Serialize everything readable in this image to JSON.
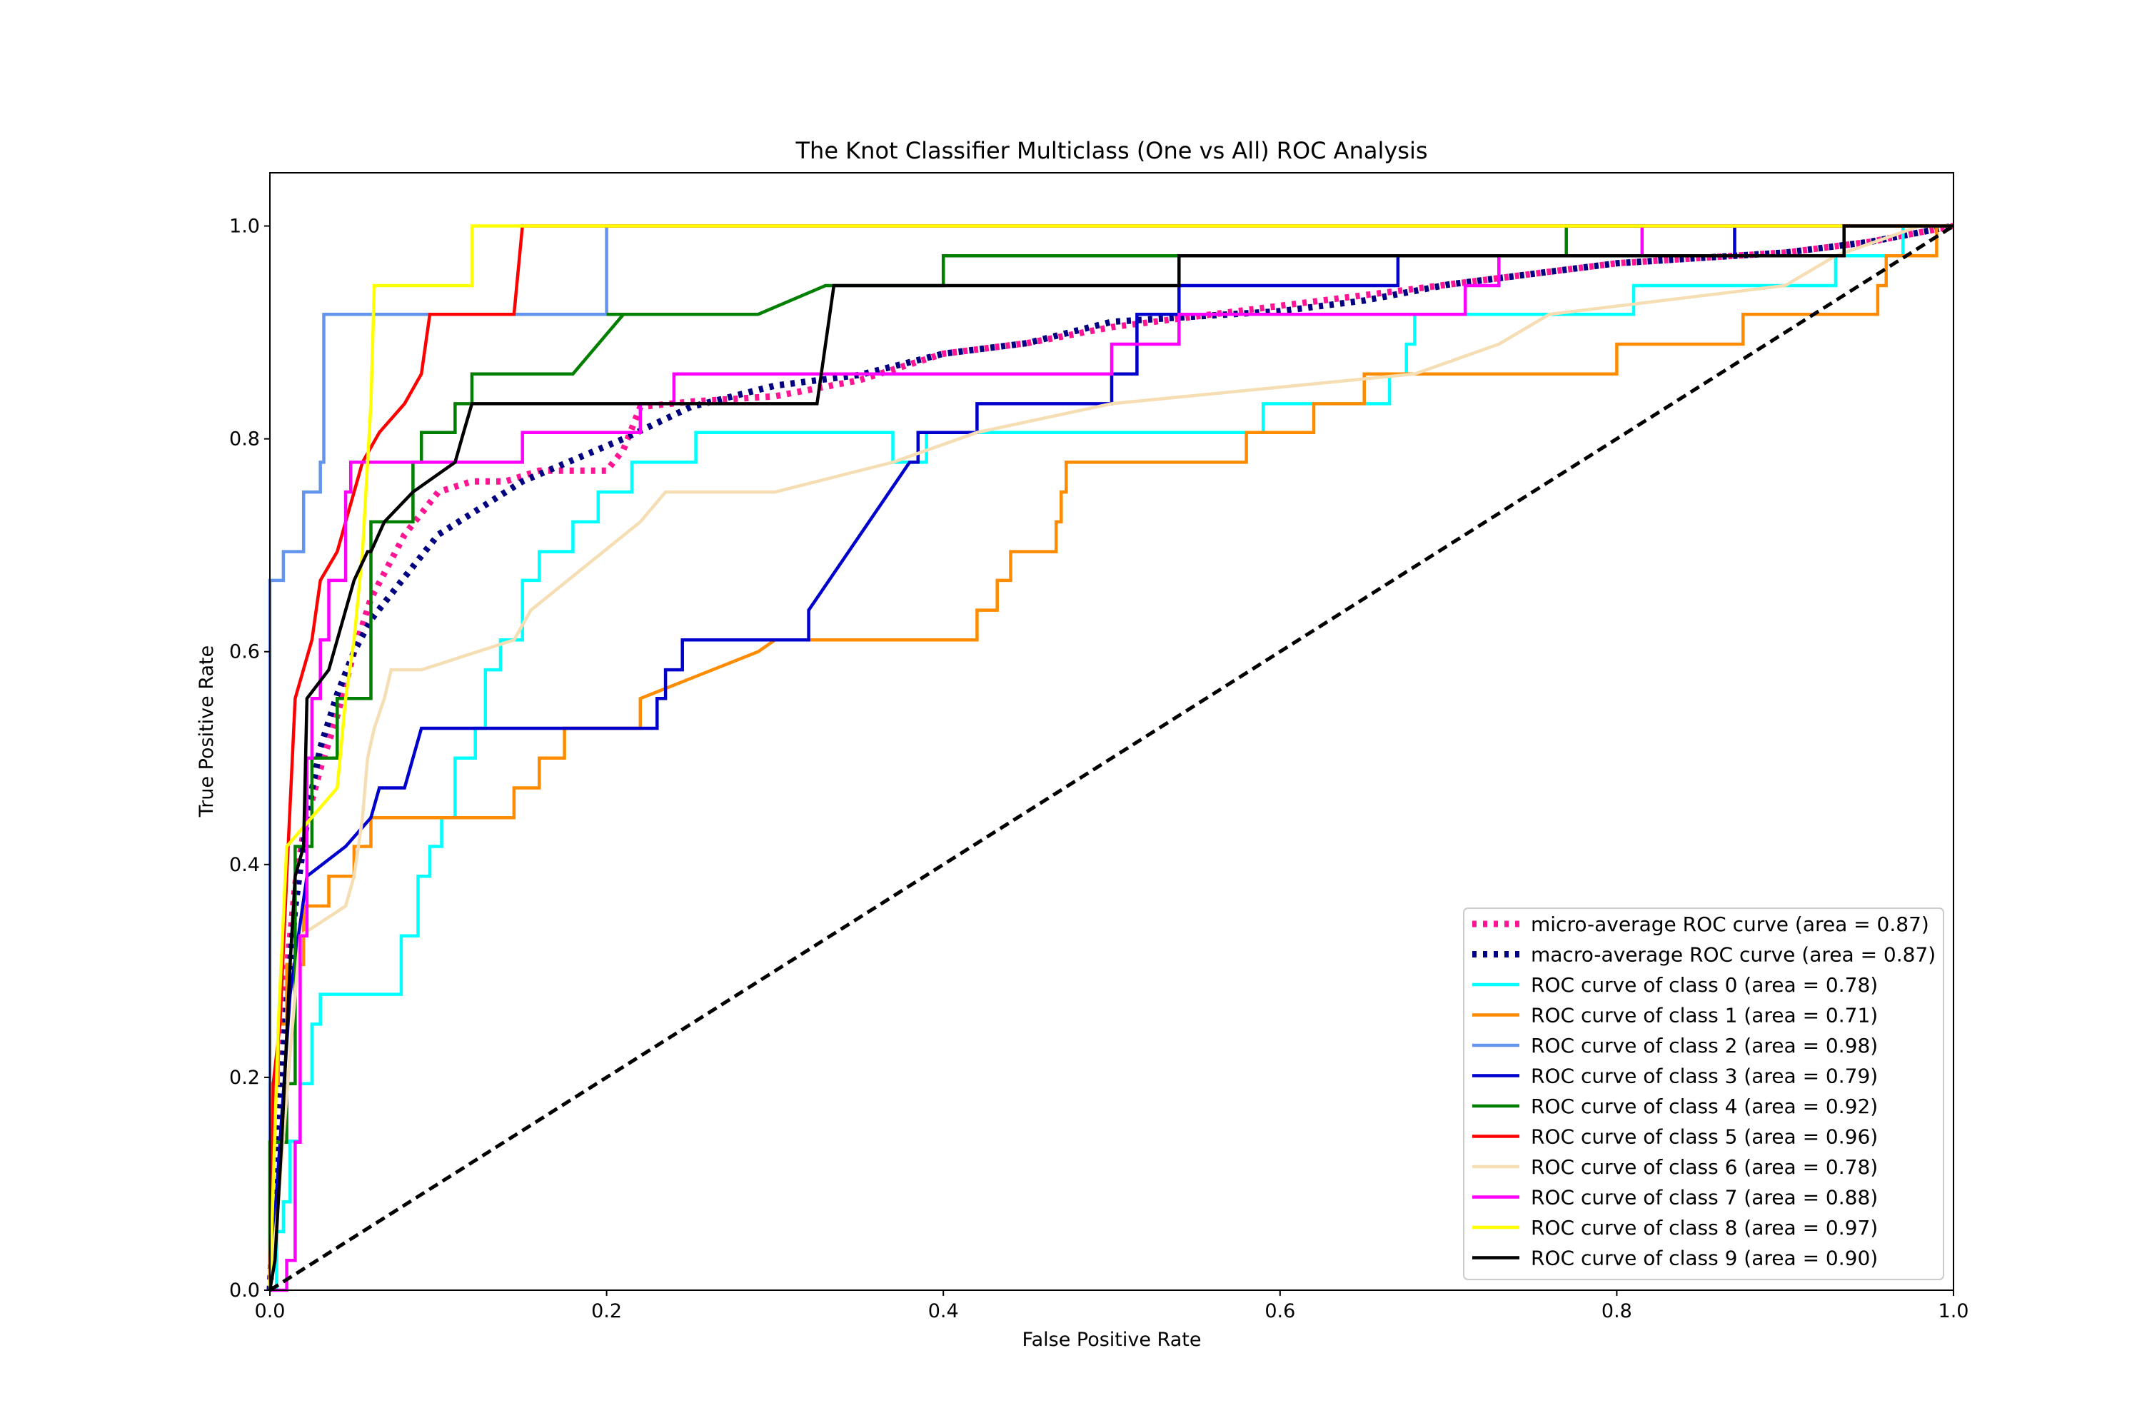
{
  "chart_data": {
    "type": "line",
    "title": "The Knot Classifier Multiclass (One vs All) ROC Analysis",
    "xlabel": "False Positive Rate",
    "ylabel": "True Positive Rate",
    "xlim": [
      0.0,
      1.0
    ],
    "ylim": [
      0.0,
      1.05
    ],
    "xticks": [
      "0.0",
      "0.2",
      "0.4",
      "0.6",
      "0.8",
      "1.0"
    ],
    "yticks": [
      "0.0",
      "0.2",
      "0.4",
      "0.6",
      "0.8",
      "1.0"
    ],
    "grid": false,
    "legend_location": "lower-right",
    "series": [
      {
        "name": "micro-average ROC curve (area = 0.87)",
        "color": "#ff1493",
        "style": "dotted",
        "x": [
          0,
          0.005,
          0.01,
          0.015,
          0.02,
          0.025,
          0.03,
          0.04,
          0.05,
          0.06,
          0.07,
          0.08,
          0.09,
          0.1,
          0.12,
          0.14,
          0.16,
          0.18,
          0.2,
          0.21,
          0.22,
          0.25,
          0.3,
          0.35,
          0.4,
          0.45,
          0.5,
          0.55,
          0.6,
          0.65,
          0.7,
          0.75,
          0.8,
          0.85,
          0.9,
          0.95,
          1.0
        ],
        "y": [
          0,
          0.17,
          0.3,
          0.38,
          0.43,
          0.46,
          0.49,
          0.54,
          0.6,
          0.65,
          0.68,
          0.71,
          0.73,
          0.75,
          0.76,
          0.76,
          0.77,
          0.77,
          0.77,
          0.79,
          0.83,
          0.835,
          0.84,
          0.855,
          0.88,
          0.89,
          0.905,
          0.915,
          0.925,
          0.935,
          0.945,
          0.955,
          0.965,
          0.97,
          0.975,
          0.985,
          1.0
        ]
      },
      {
        "name": "macro-average ROC curve (area = 0.87)",
        "color": "#000080",
        "style": "dotted",
        "x": [
          0,
          0.005,
          0.01,
          0.015,
          0.02,
          0.025,
          0.03,
          0.04,
          0.05,
          0.06,
          0.07,
          0.08,
          0.09,
          0.1,
          0.12,
          0.15,
          0.18,
          0.21,
          0.25,
          0.3,
          0.35,
          0.4,
          0.45,
          0.5,
          0.55,
          0.6,
          0.65,
          0.7,
          0.75,
          0.8,
          0.85,
          0.9,
          0.95,
          1.0
        ],
        "y": [
          0,
          0.15,
          0.27,
          0.36,
          0.42,
          0.47,
          0.51,
          0.56,
          0.6,
          0.63,
          0.65,
          0.67,
          0.69,
          0.71,
          0.73,
          0.76,
          0.78,
          0.8,
          0.83,
          0.85,
          0.86,
          0.88,
          0.89,
          0.91,
          0.915,
          0.92,
          0.93,
          0.945,
          0.955,
          0.965,
          0.97,
          0.975,
          0.985,
          1.0
        ]
      },
      {
        "name": "ROC curve of class 0 (area = 0.78)",
        "color": "#00ffff",
        "style": "solid",
        "x": [
          0,
          0.004,
          0.004,
          0.008,
          0.008,
          0.012,
          0.012,
          0.018,
          0.018,
          0.025,
          0.025,
          0.03,
          0.03,
          0.078,
          0.078,
          0.088,
          0.088,
          0.095,
          0.095,
          0.102,
          0.102,
          0.11,
          0.11,
          0.122,
          0.122,
          0.128,
          0.128,
          0.137,
          0.137,
          0.15,
          0.15,
          0.16,
          0.16,
          0.18,
          0.18,
          0.195,
          0.195,
          0.215,
          0.215,
          0.24,
          0.24,
          0.253,
          0.253,
          0.37,
          0.37,
          0.39,
          0.39,
          0.59,
          0.59,
          0.665,
          0.665,
          0.675,
          0.675,
          0.68,
          0.68,
          0.81,
          0.81,
          0.93,
          0.93,
          0.97,
          0.97,
          1.0
        ],
        "y": [
          0,
          0,
          0.055,
          0.055,
          0.083,
          0.083,
          0.14,
          0.14,
          0.194,
          0.194,
          0.25,
          0.25,
          0.278,
          0.278,
          0.333,
          0.333,
          0.389,
          0.389,
          0.417,
          0.417,
          0.444,
          0.444,
          0.5,
          0.5,
          0.528,
          0.528,
          0.583,
          0.583,
          0.611,
          0.611,
          0.667,
          0.667,
          0.694,
          0.694,
          0.722,
          0.722,
          0.75,
          0.75,
          0.778,
          0.778,
          0.778,
          0.778,
          0.806,
          0.806,
          0.778,
          0.778,
          0.806,
          0.806,
          0.833,
          0.833,
          0.861,
          0.861,
          0.889,
          0.889,
          0.917,
          0.917,
          0.944,
          0.944,
          0.972,
          0.972,
          1.0,
          1.0
        ]
      },
      {
        "name": "ROC curve of class 1 (area = 0.71)",
        "color": "#ff8c00",
        "style": "solid",
        "x": [
          0,
          0,
          0.005,
          0.005,
          0.01,
          0.01,
          0.02,
          0.02,
          0.035,
          0.035,
          0.05,
          0.05,
          0.06,
          0.06,
          0.145,
          0.145,
          0.16,
          0.16,
          0.175,
          0.175,
          0.22,
          0.22,
          0.29,
          0.3,
          0.42,
          0.42,
          0.432,
          0.432,
          0.44,
          0.44,
          0.467,
          0.467,
          0.47,
          0.47,
          0.473,
          0.473,
          0.58,
          0.58,
          0.62,
          0.62,
          0.65,
          0.65,
          0.8,
          0.8,
          0.875,
          0.875,
          0.955,
          0.955,
          0.96,
          0.96,
          0.99,
          0.99,
          1.0
        ],
        "y": [
          0,
          0.194,
          0.194,
          0.25,
          0.25,
          0.306,
          0.306,
          0.361,
          0.361,
          0.389,
          0.389,
          0.417,
          0.417,
          0.444,
          0.444,
          0.472,
          0.472,
          0.5,
          0.5,
          0.528,
          0.528,
          0.556,
          0.6,
          0.611,
          0.611,
          0.639,
          0.639,
          0.667,
          0.667,
          0.694,
          0.694,
          0.722,
          0.722,
          0.75,
          0.75,
          0.778,
          0.778,
          0.806,
          0.806,
          0.833,
          0.833,
          0.861,
          0.861,
          0.889,
          0.889,
          0.917,
          0.917,
          0.944,
          0.944,
          0.972,
          0.972,
          1.0,
          1.0
        ]
      },
      {
        "name": "ROC curve of class 2 (area = 0.98)",
        "color": "#6495ed",
        "style": "solid",
        "x": [
          0,
          0,
          0.008,
          0.008,
          0.02,
          0.02,
          0.03,
          0.03,
          0.032,
          0.032,
          0.2,
          0.2,
          1.0
        ],
        "y": [
          0,
          0.667,
          0.667,
          0.694,
          0.694,
          0.75,
          0.75,
          0.778,
          0.778,
          0.917,
          0.917,
          1.0,
          1.0
        ]
      },
      {
        "name": "ROC curve of class 3 (area = 0.79)",
        "color": "#0000cd",
        "style": "solid",
        "x": [
          0,
          0.012,
          0.012,
          0.022,
          0.022,
          0.045,
          0.045,
          0.06,
          0.06,
          0.065,
          0.065,
          0.08,
          0.08,
          0.085,
          0.085,
          0.09,
          0.09,
          0.215,
          0.23,
          0.23,
          0.235,
          0.235,
          0.245,
          0.245,
          0.32,
          0.32,
          0.38,
          0.385,
          0.385,
          0.42,
          0.42,
          0.5,
          0.5,
          0.515,
          0.515,
          0.54,
          0.54,
          0.67,
          0.67,
          0.87,
          0.87,
          1.0
        ],
        "y": [
          0,
          0.278,
          0.278,
          0.389,
          0.389,
          0.417,
          0.417,
          0.444,
          0.444,
          0.472,
          0.472,
          0.472,
          0.472,
          0.5,
          0.5,
          0.528,
          0.528,
          0.528,
          0.528,
          0.556,
          0.556,
          0.583,
          0.583,
          0.611,
          0.611,
          0.639,
          0.778,
          0.778,
          0.806,
          0.806,
          0.833,
          0.833,
          0.861,
          0.861,
          0.917,
          0.917,
          0.944,
          0.944,
          0.972,
          0.972,
          1.0,
          1.0
        ]
      },
      {
        "name": "ROC curve of class 4 (area = 0.92)",
        "color": "#007f00",
        "style": "solid",
        "x": [
          0,
          0,
          0.01,
          0.01,
          0.015,
          0.015,
          0.025,
          0.025,
          0.04,
          0.04,
          0.06,
          0.06,
          0.085,
          0.085,
          0.09,
          0.09,
          0.11,
          0.11,
          0.12,
          0.12,
          0.16,
          0.18,
          0.21,
          0.2,
          0.29,
          0.33,
          0.4,
          0.4,
          0.54,
          0.54,
          0.77,
          0.77,
          1.0
        ],
        "y": [
          0,
          0.139,
          0.139,
          0.194,
          0.194,
          0.417,
          0.417,
          0.5,
          0.5,
          0.556,
          0.556,
          0.722,
          0.722,
          0.778,
          0.778,
          0.806,
          0.806,
          0.833,
          0.833,
          0.861,
          0.861,
          0.861,
          0.917,
          0.917,
          0.917,
          0.944,
          0.944,
          0.972,
          0.972,
          0.972,
          0.972,
          1.0,
          1.0
        ]
      },
      {
        "name": "ROC curve of class 5 (area = 0.96)",
        "color": "#ff0000",
        "style": "solid",
        "x": [
          0,
          0.002,
          0.002,
          0.006,
          0.006,
          0.01,
          0.01,
          0.015,
          0.015,
          0.025,
          0.025,
          0.03,
          0.03,
          0.04,
          0.04,
          0.045,
          0.045,
          0.055,
          0.055,
          0.065,
          0.065,
          0.08,
          0.08,
          0.09,
          0.09,
          0.095,
          0.095,
          0.145,
          0.15,
          0.15,
          1.0
        ],
        "y": [
          0,
          0.194,
          0.194,
          0.25,
          0.25,
          0.389,
          0.389,
          0.556,
          0.556,
          0.611,
          0.611,
          0.667,
          0.667,
          0.694,
          0.694,
          0.722,
          0.722,
          0.778,
          0.778,
          0.806,
          0.806,
          0.833,
          0.833,
          0.861,
          0.861,
          0.917,
          0.917,
          0.917,
          1.0,
          1.0,
          1.0
        ]
      },
      {
        "name": "ROC curve of class 6 (area = 0.78)",
        "color": "#f5deb3",
        "style": "solid",
        "x": [
          0,
          0.005,
          0.005,
          0.012,
          0.012,
          0.018,
          0.018,
          0.045,
          0.045,
          0.05,
          0.05,
          0.055,
          0.055,
          0.058,
          0.058,
          0.062,
          0.062,
          0.068,
          0.068,
          0.072,
          0.072,
          0.09,
          0.09,
          0.145,
          0.145,
          0.155,
          0.155,
          0.22,
          0.22,
          0.235,
          0.235,
          0.3,
          0.3,
          0.37,
          0.37,
          0.42,
          0.42,
          0.5,
          0.5,
          0.68,
          0.68,
          0.73,
          0.73,
          0.76,
          0.76,
          0.9,
          0.9,
          0.93,
          0.93,
          0.98,
          0.98,
          1.0
        ],
        "y": [
          0,
          0.083,
          0.083,
          0.222,
          0.222,
          0.333,
          0.333,
          0.361,
          0.361,
          0.389,
          0.389,
          0.444,
          0.444,
          0.5,
          0.5,
          0.528,
          0.528,
          0.556,
          0.556,
          0.583,
          0.583,
          0.583,
          0.583,
          0.611,
          0.611,
          0.639,
          0.639,
          0.722,
          0.722,
          0.75,
          0.75,
          0.75,
          0.75,
          0.778,
          0.778,
          0.806,
          0.806,
          0.833,
          0.833,
          0.861,
          0.861,
          0.889,
          0.889,
          0.917,
          0.917,
          0.944,
          0.944,
          0.972,
          0.972,
          1.0,
          1.0,
          1.0
        ]
      },
      {
        "name": "ROC curve of class 7 (area = 0.88)",
        "color": "#ff00ff",
        "style": "solid",
        "x": [
          0,
          0.01,
          0.01,
          0.015,
          0.015,
          0.018,
          0.018,
          0.022,
          0.022,
          0.025,
          0.025,
          0.03,
          0.03,
          0.035,
          0.035,
          0.045,
          0.045,
          0.048,
          0.048,
          0.15,
          0.15,
          0.22,
          0.22,
          0.24,
          0.24,
          0.5,
          0.5,
          0.54,
          0.54,
          0.71,
          0.71,
          0.73,
          0.73,
          0.815,
          0.815,
          1.0
        ],
        "y": [
          0,
          0,
          0.028,
          0.028,
          0.139,
          0.139,
          0.333,
          0.333,
          0.5,
          0.5,
          0.556,
          0.556,
          0.611,
          0.611,
          0.667,
          0.667,
          0.75,
          0.75,
          0.778,
          0.778,
          0.806,
          0.806,
          0.833,
          0.833,
          0.861,
          0.861,
          0.889,
          0.889,
          0.917,
          0.917,
          0.944,
          0.944,
          0.972,
          0.972,
          1.0,
          1.0
        ]
      },
      {
        "name": "ROC curve of class 8 (area = 0.97)",
        "color": "#ffff00",
        "style": "solid",
        "x": [
          0,
          0.005,
          0.005,
          0.01,
          0.01,
          0.04,
          0.04,
          0.045,
          0.045,
          0.05,
          0.05,
          0.055,
          0.055,
          0.06,
          0.06,
          0.062,
          0.062,
          0.12,
          0.12,
          1.0
        ],
        "y": [
          0,
          0.25,
          0.25,
          0.417,
          0.417,
          0.472,
          0.472,
          0.556,
          0.556,
          0.611,
          0.611,
          0.694,
          0.694,
          0.833,
          0.833,
          0.944,
          0.944,
          0.944,
          1.0,
          1.0
        ]
      },
      {
        "name": "ROC curve of class 9 (area = 0.90)",
        "color": "#000000",
        "style": "solid",
        "x": [
          0,
          0.003,
          0.003,
          0.007,
          0.007,
          0.012,
          0.012,
          0.015,
          0.015,
          0.02,
          0.02,
          0.022,
          0.022,
          0.035,
          0.035,
          0.04,
          0.04,
          0.05,
          0.05,
          0.058,
          0.058,
          0.06,
          0.06,
          0.068,
          0.068,
          0.085,
          0.085,
          0.11,
          0.11,
          0.115,
          0.115,
          0.12,
          0.12,
          0.325,
          0.335,
          0.54,
          0.54,
          0.935,
          0.935,
          1.0
        ],
        "y": [
          0,
          0.028,
          0.028,
          0.139,
          0.139,
          0.306,
          0.306,
          0.389,
          0.389,
          0.417,
          0.417,
          0.556,
          0.556,
          0.583,
          0.583,
          0.611,
          0.611,
          0.667,
          0.667,
          0.694,
          0.694,
          0.694,
          0.694,
          0.722,
          0.722,
          0.75,
          0.75,
          0.778,
          0.778,
          0.806,
          0.806,
          0.833,
          0.833,
          0.833,
          0.944,
          0.944,
          0.972,
          0.972,
          1.0,
          1.0
        ]
      },
      {
        "name": "",
        "color": "#000000",
        "style": "dashed",
        "x": [
          0,
          1
        ],
        "y": [
          0,
          1
        ]
      }
    ]
  }
}
